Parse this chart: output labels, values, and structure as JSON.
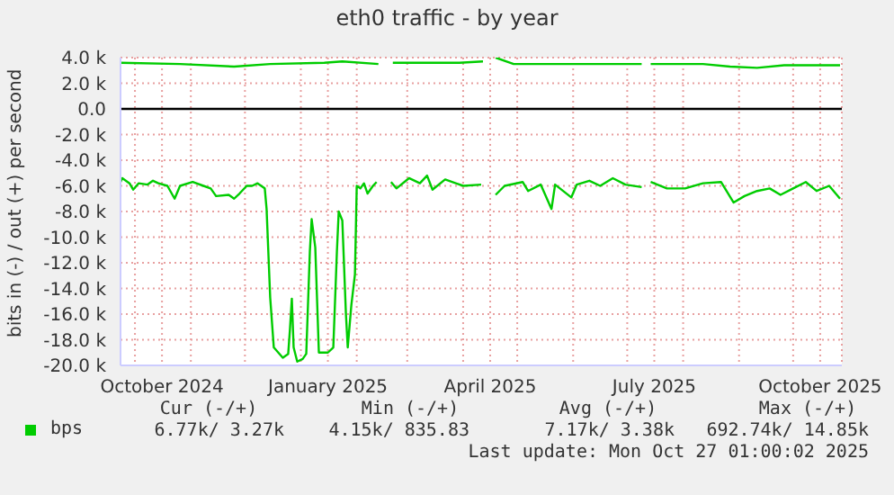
{
  "chart_data": {
    "type": "line",
    "title": "eth0 traffic - by year",
    "ylabel": "bits in (-) / out (+) per second",
    "xlim": [
      "2024-09-23",
      "2025-10-28"
    ],
    "xticks": [
      {
        "value": "2024-10-01",
        "label": null
      },
      {
        "value": "2024-10-16",
        "label": "October 2024"
      },
      {
        "value": "2024-11-01",
        "label": null
      },
      {
        "value": "2024-12-01",
        "label": null
      },
      {
        "value": "2025-01-01",
        "label": null
      },
      {
        "value": "2025-01-16",
        "label": "January 2025"
      },
      {
        "value": "2025-02-01",
        "label": null
      },
      {
        "value": "2025-03-01",
        "label": null
      },
      {
        "value": "2025-04-01",
        "label": null
      },
      {
        "value": "2025-04-16",
        "label": "April 2025"
      },
      {
        "value": "2025-05-01",
        "label": null
      },
      {
        "value": "2025-06-01",
        "label": null
      },
      {
        "value": "2025-07-01",
        "label": null
      },
      {
        "value": "2025-07-16",
        "label": "July 2025"
      },
      {
        "value": "2025-08-01",
        "label": null
      },
      {
        "value": "2025-09-01",
        "label": null
      },
      {
        "value": "2025-10-01",
        "label": null
      },
      {
        "value": "2025-10-16",
        "label": "October 2025"
      }
    ],
    "ylim": [
      -20,
      4
    ],
    "yticks": [
      {
        "value": 4,
        "label": "4.0 k"
      },
      {
        "value": 2,
        "label": "2.0 k"
      },
      {
        "value": 0,
        "label": "0.0"
      },
      {
        "value": -2,
        "label": "-2.0 k"
      },
      {
        "value": -4,
        "label": "-4.0 k"
      },
      {
        "value": -6,
        "label": "-6.0 k"
      },
      {
        "value": -8,
        "label": "-8.0 k"
      },
      {
        "value": -10,
        "label": "-10.0 k"
      },
      {
        "value": -12,
        "label": "-12.0 k"
      },
      {
        "value": -14,
        "label": "-14.0 k"
      },
      {
        "value": -16,
        "label": "-16.0 k"
      },
      {
        "value": -18,
        "label": "-18.0 k"
      },
      {
        "value": -20,
        "label": "-20.0 k"
      }
    ],
    "grid": true,
    "legend": "bottom left",
    "marker": "none",
    "line_style": "solid",
    "ref_lines": [
      {
        "axis": "y",
        "value": 0,
        "color": "#000000"
      }
    ],
    "annotations": [
      "Cur (-/+)",
      "Min (-/+)",
      "Avg (-/+)",
      "Max (-/+)",
      "6.77k/ 3.27k",
      "4.15k/ 835.83",
      "7.17k/ 3.38k",
      "692.74k/ 14.85k",
      "Last update: Mon Oct 27 01:00:02 2025"
    ],
    "series": [
      {
        "name": "bps",
        "color": "#00cc00",
        "x": [
          "2024-09-23",
          "2024-10-26",
          "2024-11-25",
          "2024-12-15",
          "2025-01-14",
          "2025-01-24",
          "2025-02-13",
          "2025-02-16",
          "2025-02-21",
          "2025-03-15",
          "2025-03-30",
          "2025-04-12",
          "2025-04-15",
          "2025-04-19",
          "2025-04-29",
          "2025-05-14",
          "2025-06-13",
          "2025-07-09",
          "2025-07-11",
          "2025-07-14",
          "2025-08-12",
          "2025-08-27",
          "2025-09-11",
          "2025-09-26",
          "2025-10-11",
          "2025-10-27"
        ],
        "values": [
          3.6,
          3.5,
          3.3,
          3.5,
          3.6,
          3.7,
          3.5,
          null,
          3.6,
          3.6,
          3.6,
          3.7,
          null,
          4.0,
          3.5,
          3.5,
          3.5,
          3.5,
          null,
          3.5,
          3.5,
          3.3,
          3.2,
          3.4,
          3.4,
          3.4
        ]
      },
      {
        "color": "#00cc00",
        "x": [
          "2024-09-23",
          "2024-09-24",
          "2024-09-28",
          "2024-09-30",
          "2024-10-03",
          "2024-10-08",
          "2024-10-11",
          "2024-10-14",
          "2024-10-19",
          "2024-10-23",
          "2024-10-26",
          "2024-11-02",
          "2024-11-08",
          "2024-11-12",
          "2024-11-15",
          "2024-11-22",
          "2024-11-25",
          "2024-11-28",
          "2024-12-02",
          "2024-12-05",
          "2024-12-08",
          "2024-12-12",
          "2024-12-13",
          "2024-12-15",
          "2024-12-17",
          "2024-12-22",
          "2024-12-25",
          "2024-12-26",
          "2024-12-27",
          "2024-12-28",
          "2024-12-30",
          "2025-01-02",
          "2025-01-04",
          "2025-01-06",
          "2025-01-07",
          "2025-01-09",
          "2025-01-11",
          "2025-01-16",
          "2025-01-19",
          "2025-01-21",
          "2025-01-22",
          "2025-01-24",
          "2025-01-26",
          "2025-01-27",
          "2025-01-29",
          "2025-01-31",
          "2025-02-01",
          "2025-02-03",
          "2025-02-05",
          "2025-02-07",
          "2025-02-10",
          "2025-02-12",
          "2025-02-14",
          "2025-02-20",
          "2025-02-23",
          "2025-03-02",
          "2025-03-08",
          "2025-03-12",
          "2025-03-15",
          "2025-03-22",
          "2025-04-01",
          "2025-04-11",
          "2025-04-15",
          "2025-04-19",
          "2025-04-24",
          "2025-05-04",
          "2025-05-07",
          "2025-05-14",
          "2025-05-20",
          "2025-05-22",
          "2025-05-31",
          "2025-06-03",
          "2025-06-10",
          "2025-06-16",
          "2025-06-23",
          "2025-06-30",
          "2025-07-09",
          "2025-07-11",
          "2025-07-14",
          "2025-07-23",
          "2025-08-02",
          "2025-08-12",
          "2025-08-22",
          "2025-08-29",
          "2025-09-04",
          "2025-09-11",
          "2025-09-18",
          "2025-09-24",
          "2025-10-01",
          "2025-10-08",
          "2025-10-14",
          "2025-10-21",
          "2025-10-27"
        ],
        "values": [
          -5.7,
          -5.4,
          -5.8,
          -6.3,
          -5.8,
          -5.9,
          -5.6,
          -5.8,
          -6.0,
          -7.0,
          -6.0,
          -5.7,
          -6.0,
          -6.2,
          -6.8,
          -6.7,
          -7.0,
          -6.6,
          -6.0,
          -6.0,
          -5.8,
          -6.2,
          -7.8,
          -14.7,
          -18.6,
          -19.4,
          -19.1,
          -17.1,
          -14.8,
          -18.6,
          -19.7,
          -19.5,
          -19.1,
          -11.1,
          -8.6,
          -10.8,
          -19.0,
          -19.0,
          -18.6,
          -11.1,
          -8.0,
          -8.7,
          -16.0,
          -18.6,
          -15.3,
          -12.9,
          -6.0,
          -6.2,
          -5.8,
          -6.6,
          -6.0,
          -5.7,
          null,
          -5.7,
          -6.2,
          -5.4,
          -5.8,
          -5.2,
          -6.3,
          -5.5,
          -6.0,
          -5.9,
          null,
          -6.7,
          -6.0,
          -5.7,
          -6.4,
          -5.9,
          -7.8,
          -5.9,
          -6.9,
          -5.9,
          -5.6,
          -6.0,
          -5.4,
          -5.9,
          -6.1,
          null,
          -5.7,
          -6.2,
          -6.2,
          -5.8,
          -5.7,
          -7.3,
          -6.8,
          -6.4,
          -6.2,
          -6.7,
          -6.2,
          -5.7,
          -6.4,
          -6.0,
          -7.0
        ]
      }
    ]
  }
}
